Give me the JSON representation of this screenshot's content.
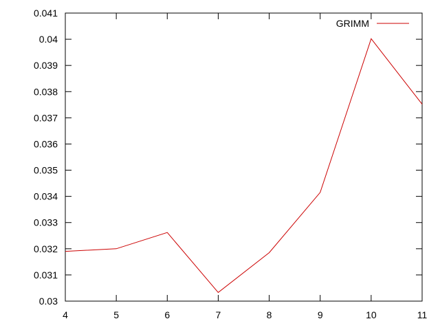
{
  "chart_data": {
    "type": "line",
    "title": "",
    "xlabel": "",
    "ylabel": "",
    "x": [
      4,
      5,
      6,
      7,
      8,
      9,
      10,
      11
    ],
    "xlim": [
      4,
      11
    ],
    "ylim": [
      0.03,
      0.041
    ],
    "x_ticks": [
      "4",
      "5",
      "6",
      "7",
      "8",
      "9",
      "10",
      "11"
    ],
    "y_ticks": [
      "0.03",
      "0.031",
      "0.032",
      "0.033",
      "0.034",
      "0.035",
      "0.036",
      "0.037",
      "0.038",
      "0.039",
      "0.04",
      "0.041"
    ],
    "grid": false,
    "legend_position": "top-right",
    "series": [
      {
        "name": "GRIMM",
        "color": "#cc0000",
        "values": [
          0.0319,
          0.032,
          0.03262,
          0.03033,
          0.03185,
          0.03415,
          0.04002,
          0.03752
        ]
      }
    ]
  }
}
